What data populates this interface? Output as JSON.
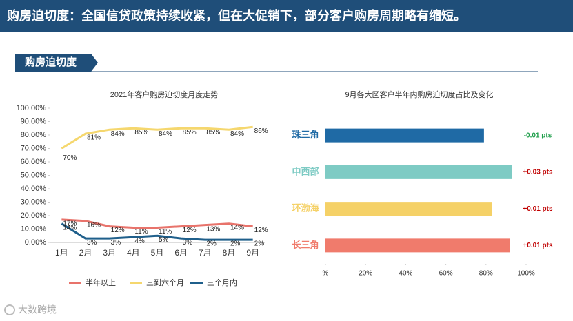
{
  "header": {
    "title": "购房迫切度：全国信贷政策持续收紧，但在大促销下，部分客户购房周期略有缩短。",
    "section": "购房迫切度",
    "footer": "大数跨境"
  },
  "chart_data": [
    {
      "type": "line",
      "title": "2021年客户购房迫切度月度走势",
      "categories": [
        "1月",
        "2月",
        "3月",
        "4月",
        "5月",
        "6月",
        "7月",
        "8月",
        "9月"
      ],
      "ylim": [
        0,
        100
      ],
      "yticks": [
        {
          "value": 0,
          "label": "0.00%"
        },
        {
          "value": 10,
          "label": "10.00%"
        },
        {
          "value": 20,
          "label": "20.00%"
        },
        {
          "value": 30,
          "label": "30.00%"
        },
        {
          "value": 40,
          "label": "40.00%"
        },
        {
          "value": 50,
          "label": "50.00%"
        },
        {
          "value": 60,
          "label": "60.00%"
        },
        {
          "value": 70,
          "label": "70.00%"
        },
        {
          "value": 80,
          "label": "80.00%"
        },
        {
          "value": 90,
          "label": "90.00%"
        },
        {
          "value": 100,
          "label": "100.00%"
        }
      ],
      "legend": "bottom",
      "series": [
        {
          "name": "半年以上",
          "color": "#e8736b",
          "values": [
            17,
            16,
            12,
            11,
            11,
            12,
            13,
            14,
            12
          ],
          "value_labels": [
            "17%",
            "16%",
            "12%",
            "11%",
            "11%",
            "12%",
            "13%",
            "14%",
            "12%"
          ]
        },
        {
          "name": "三到六个月",
          "color": "#f5d76e",
          "values": [
            70,
            81,
            84,
            85,
            84,
            85,
            85,
            84,
            86
          ],
          "value_labels": [
            "70%",
            "81%",
            "84%",
            "85%",
            "84%",
            "85%",
            "85%",
            "84%",
            "86%"
          ]
        },
        {
          "name": "三个月内",
          "color": "#1f5f8b",
          "values": [
            14,
            3,
            3,
            4,
            5,
            3,
            2,
            2,
            2
          ],
          "value_labels": [
            "14%",
            "3%",
            "3%",
            "4%",
            "5%",
            "3%",
            "2%",
            "2%",
            "2%"
          ]
        }
      ]
    },
    {
      "type": "bar",
      "title": "9月各大区客户半年内购房迫切度占比及变化",
      "categories": [
        "珠三角",
        "中西部",
        "环渤海",
        "长三角"
      ],
      "values": [
        79,
        93,
        83,
        92
      ],
      "colors": [
        "#1f6aa5",
        "#7ecbc4",
        "#f5d167",
        "#f07b6c"
      ],
      "changes": [
        "-0.01 pts",
        "+0.03 pts",
        "+0.01 pts",
        "+0.01 pts"
      ],
      "change_colors": [
        "#1e9e4a",
        "#c00000",
        "#c00000",
        "#c00000"
      ],
      "xlim": [
        0,
        100
      ],
      "xticks": [
        {
          "value": 0,
          "label": "%"
        },
        {
          "value": 20,
          "label": "20%"
        },
        {
          "value": 40,
          "label": "40%"
        },
        {
          "value": 60,
          "label": "60%"
        },
        {
          "value": 80,
          "label": "80%"
        },
        {
          "value": 100,
          "label": "100%"
        }
      ]
    }
  ]
}
